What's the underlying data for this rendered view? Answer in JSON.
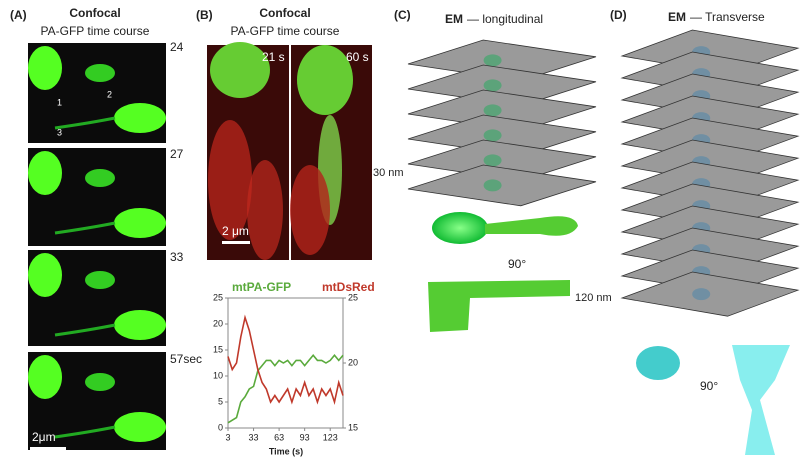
{
  "panels": [
    {
      "label": "(A)",
      "title": "Confocal",
      "subtitle": "PA-GFP time course",
      "times": [
        "24",
        "27",
        "33",
        "57sec"
      ],
      "markers": [
        "1",
        "2",
        "3"
      ],
      "scale_bar": "2μm"
    },
    {
      "label": "(B)",
      "title": "Confocal",
      "subtitle": "PA-GFP time course",
      "frames": [
        "21 s",
        "60 s"
      ],
      "scale_bar": "2 μm"
    },
    {
      "label": "(C)",
      "title_bold": "EM",
      "title_rest": "— longitudinal",
      "spacing": "30 nm",
      "rotation": "90°"
    },
    {
      "label": "(D)",
      "title_bold": "EM",
      "title_rest": "— Transverse",
      "spacing": "120 nm",
      "rotation": "90°"
    }
  ],
  "chart_data": {
    "type": "line",
    "xlabel": "Time (s)",
    "x": [
      3,
      8,
      13,
      18,
      23,
      28,
      33,
      38,
      43,
      48,
      53,
      58,
      63,
      68,
      73,
      78,
      83,
      88,
      93,
      98,
      103,
      108,
      113,
      118,
      123,
      128,
      133,
      138
    ],
    "xlim": [
      3,
      138
    ],
    "xticks": [
      3,
      33,
      63,
      93,
      123
    ],
    "ylim": [
      0,
      25
    ],
    "yticks": [
      0,
      5,
      10,
      15,
      20,
      25
    ],
    "y2lim": [
      15,
      25
    ],
    "y2ticks": [
      15,
      20,
      25
    ],
    "series": [
      {
        "name": "mtPA-GFP",
        "color": "#5aaa3c",
        "values": [
          1,
          1.5,
          2,
          5,
          6,
          7.5,
          8,
          11,
          12,
          13,
          13,
          12,
          13,
          12.5,
          13,
          12,
          13,
          13,
          12,
          13,
          14,
          13,
          13,
          12.5,
          13,
          14,
          13,
          14
        ]
      },
      {
        "name": "mtDsRed",
        "color": "#c0392b",
        "axis": "y2",
        "values": [
          20.5,
          19.5,
          20,
          22,
          23.5,
          22.5,
          21,
          19.5,
          18.5,
          18,
          17,
          17.5,
          17,
          17.5,
          18,
          17,
          18,
          17.5,
          18.5,
          17.5,
          18,
          17,
          18,
          17.5,
          18,
          17,
          18.5,
          17.5
        ]
      }
    ]
  }
}
